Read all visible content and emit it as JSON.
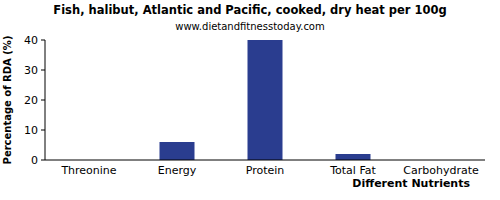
{
  "chart_data": {
    "type": "bar",
    "title": "Fish, halibut, Atlantic and Pacific, cooked, dry heat per 100g",
    "subtitle": "www.dietandfitnesstoday.com",
    "x_label": "Different Nutrients",
    "y_label": "Percentage of RDA (%)",
    "categories": [
      "Threonine",
      "Energy",
      "Protein",
      "Total Fat",
      "Carbohydrate"
    ],
    "values": [
      0,
      6,
      40,
      2,
      0
    ],
    "color": "#2a3d8f",
    "ylim": [
      0,
      40
    ],
    "yticks": [
      0,
      10,
      20,
      30,
      40
    ],
    "grid": false
  }
}
